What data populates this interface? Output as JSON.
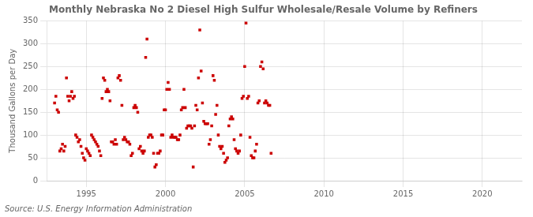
{
  "chart_data": {
    "type": "scatter",
    "title": "Monthly Nebraska No 2 Diesel High Sulfur Wholesale/Resale Volume by Refiners",
    "ylabel": "Thousand Gallons per Day",
    "annotation": "Source: U.S. Energy Information Administration",
    "color": "#cc0000",
    "marker": "square",
    "xlim": [
      1992.5,
      2022.5
    ],
    "ylim": [
      0,
      350
    ],
    "xticks": [
      1995,
      2000,
      2005,
      2010,
      2015,
      2020
    ],
    "yticks": [
      0,
      50,
      100,
      150,
      200,
      250,
      300,
      350
    ],
    "grid": true,
    "x": [
      1993,
      1993.0833333333333,
      1993.1666666666667,
      1993.25,
      1993.3333333333333,
      1993.4166666666667,
      1993.5,
      1993.5833333333333,
      1993.6666666666667,
      1993.75,
      1993.8333333333333,
      1993.9166666666667,
      1994,
      1994.0833333333333,
      1994.1666666666667,
      1994.25,
      1994.3333333333333,
      1994.4166666666667,
      1994.5,
      1994.5833333333333,
      1994.6666666666667,
      1994.75,
      1994.8333333333333,
      1994.9166666666667,
      1995,
      1995.0833333333333,
      1995.1666666666667,
      1995.25,
      1995.3333333333333,
      1995.4166666666667,
      1995.5,
      1995.5833333333333,
      1995.6666666666667,
      1995.75,
      1995.8333333333333,
      1995.9166666666667,
      1996,
      1996.0833333333333,
      1996.1666666666667,
      1996.25,
      1996.3333333333333,
      1996.4166666666667,
      1996.5,
      1996.5833333333333,
      1996.6666666666667,
      1996.75,
      1996.8333333333333,
      1996.9166666666667,
      1997,
      1997.0833333333333,
      1997.1666666666667,
      1997.25,
      1997.3333333333333,
      1997.4166666666667,
      1997.5,
      1997.5833333333333,
      1997.6666666666667,
      1997.75,
      1997.8333333333333,
      1997.9166666666667,
      1998,
      1998.0833333333333,
      1998.1666666666667,
      1998.25,
      1998.3333333333333,
      1998.4166666666667,
      1998.5,
      1998.5833333333333,
      1998.6666666666667,
      1998.75,
      1998.8333333333333,
      1998.9166666666667,
      1999,
      1999.0833333333333,
      1999.1666666666667,
      1999.25,
      1999.3333333333333,
      1999.4166666666667,
      1999.5,
      1999.5833333333333,
      1999.6666666666667,
      1999.75,
      1999.8333333333333,
      1999.9166666666667,
      2000,
      2000.0833333333333,
      2000.1666666666667,
      2000.25,
      2000.3333333333333,
      2000.4166666666667,
      2000.5,
      2000.5833333333333,
      2000.6666666666667,
      2000.75,
      2000.8333333333333,
      2000.9166666666667,
      2001,
      2001.0833333333333,
      2001.1666666666667,
      2001.25,
      2001.3333333333333,
      2001.4166666666667,
      2001.5,
      2001.5833333333333,
      2001.6666666666667,
      2001.75,
      2001.8333333333333,
      2001.9166666666667,
      2002,
      2002.0833333333333,
      2002.1666666666667,
      2002.25,
      2002.3333333333333,
      2002.4166666666667,
      2002.5,
      2002.5833333333333,
      2002.6666666666667,
      2002.75,
      2002.8333333333333,
      2002.9166666666667,
      2003,
      2003.0833333333333,
      2003.1666666666667,
      2003.25,
      2003.3333333333333,
      2003.4166666666667,
      2003.5,
      2003.5833333333333,
      2003.6666666666667,
      2003.75,
      2003.8333333333333,
      2003.9166666666667,
      2004,
      2004.0833333333333,
      2004.1666666666667,
      2004.25,
      2004.3333333333333,
      2004.4166666666667,
      2004.5,
      2004.5833333333333,
      2004.6666666666667,
      2004.75,
      2004.8333333333333,
      2004.9166666666667,
      2005,
      2005.0833333333333,
      2005.1666666666667,
      2005.25,
      2005.3333333333333,
      2005.4166666666667,
      2005.5,
      2005.5833333333333,
      2005.6666666666667,
      2005.75,
      2005.8333333333333,
      2005.9166666666667,
      2006,
      2006.0833333333333,
      2006.1666666666667,
      2006.25,
      2006.3333333333333,
      2006.4166666666667,
      2006.5,
      2006.5833333333333,
      2006.6666666666667
    ],
    "values": [
      170,
      185,
      155,
      150,
      65,
      70,
      80,
      65,
      75,
      225,
      185,
      175,
      185,
      195,
      180,
      185,
      100,
      95,
      85,
      90,
      75,
      60,
      50,
      45,
      70,
      65,
      60,
      55,
      100,
      95,
      90,
      85,
      80,
      75,
      65,
      55,
      180,
      225,
      220,
      195,
      200,
      195,
      175,
      85,
      85,
      80,
      90,
      80,
      225,
      230,
      220,
      165,
      90,
      95,
      90,
      85,
      85,
      80,
      55,
      60,
      160,
      165,
      160,
      150,
      70,
      75,
      65,
      60,
      65,
      270,
      310,
      95,
      100,
      100,
      95,
      60,
      30,
      35,
      60,
      60,
      65,
      100,
      100,
      155,
      155,
      200,
      215,
      200,
      95,
      100,
      95,
      95,
      95,
      90,
      90,
      100,
      155,
      160,
      200,
      160,
      115,
      120,
      120,
      120,
      115,
      30,
      120,
      165,
      155,
      225,
      330,
      240,
      170,
      130,
      125,
      125,
      125,
      80,
      90,
      120,
      230,
      220,
      145,
      165,
      100,
      75,
      70,
      75,
      60,
      40,
      45,
      50,
      120,
      135,
      140,
      135,
      90,
      70,
      65,
      60,
      65,
      100,
      180,
      185,
      250,
      345,
      180,
      185,
      95,
      55,
      50,
      50,
      65,
      80,
      170,
      175,
      250,
      260,
      245,
      170,
      175,
      170,
      165,
      165,
      60
    ]
  }
}
